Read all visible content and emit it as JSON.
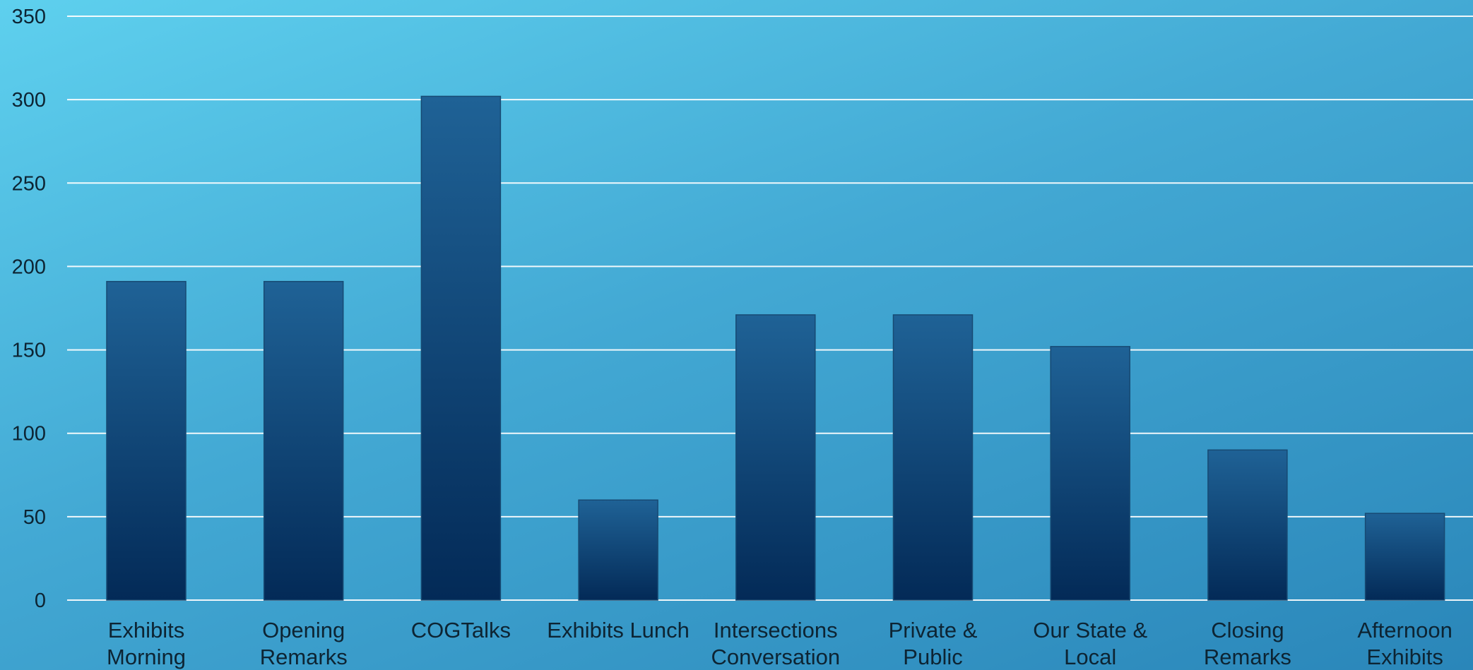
{
  "chart_data": {
    "type": "bar",
    "title": "",
    "xlabel": "",
    "ylabel": "",
    "categories": [
      [
        "Exhibits",
        "Morning"
      ],
      [
        "Opening",
        "Remarks"
      ],
      [
        "COGTalks"
      ],
      [
        "Exhibits Lunch"
      ],
      [
        "Intersections",
        "Conversation"
      ],
      [
        "Private &",
        "Public"
      ],
      [
        "Our State &",
        "Local"
      ],
      [
        "Closing",
        "Remarks"
      ],
      [
        "Afternoon",
        "Exhibits"
      ]
    ],
    "values": [
      191,
      191,
      302,
      60,
      171,
      171,
      152,
      90,
      52
    ],
    "ylim": [
      0,
      350
    ],
    "yticks": [
      "0",
      "50",
      "100",
      "150",
      "200",
      "250",
      "300",
      "350"
    ],
    "grid": true,
    "legend": "none",
    "colors": {
      "bar_top": "#1f6296",
      "bar_bottom": "#032a57",
      "grid": "#ffffff",
      "text": "#0d2433"
    }
  }
}
